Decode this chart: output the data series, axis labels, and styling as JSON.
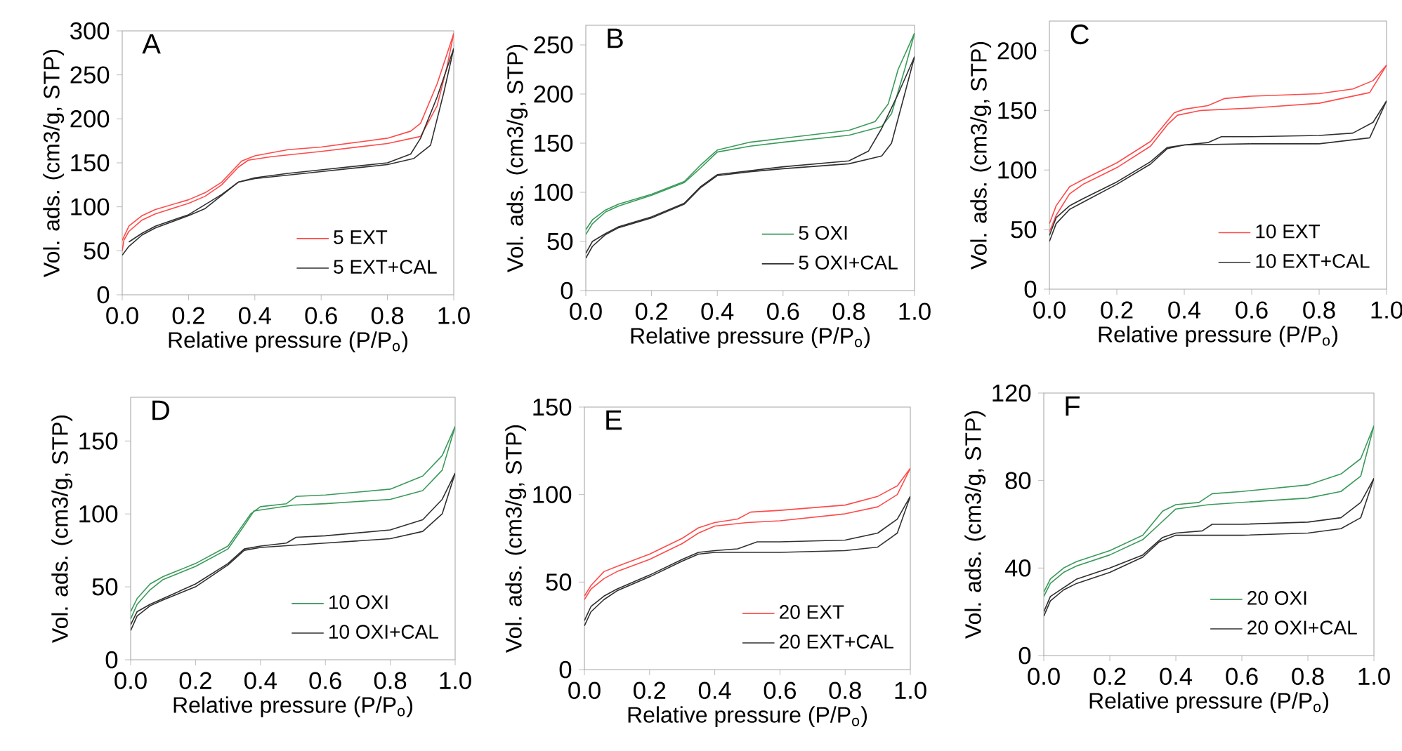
{
  "chart_data": [
    {
      "type": "line",
      "title": "A",
      "xlabel": "Relative pressure (P/P$_{o}$)",
      "ylabel": "Vol. ads. (cm3/g, STP)",
      "xlim": [
        0,
        1
      ],
      "xticks": [
        {
          "value": 0,
          "label": "0.0"
        },
        {
          "value": 0.2,
          "label": "0.2"
        },
        {
          "value": 0.4,
          "label": "0.4"
        },
        {
          "value": 0.6,
          "label": "0.6"
        },
        {
          "value": 0.8,
          "label": "0.8"
        },
        {
          "value": 1,
          "label": "1.0"
        }
      ],
      "ylim": [
        0,
        300
      ],
      "yticks": [
        0,
        50,
        100,
        150,
        200,
        250,
        300
      ],
      "legend": "bottom right",
      "grid": false,
      "series": [
        {
          "name": "5 EXT",
          "color": "#ff4a4a",
          "x": [
            0,
            0.005,
            0.02,
            0.06,
            0.1,
            0.2,
            0.25,
            0.3,
            0.35,
            0.38,
            0.45,
            0.6,
            0.8,
            0.9,
            0.95,
            0.98,
            1.0
          ],
          "values": [
            50,
            62,
            72,
            85,
            92,
            104,
            112,
            125,
            145,
            153,
            157,
            163,
            172,
            180,
            215,
            260,
            297
          ]
        },
        {
          "color": "#ff4a4a",
          "x": [
            0,
            0.02,
            0.06,
            0.1,
            0.2,
            0.25,
            0.3,
            0.36,
            0.4,
            0.5,
            0.6,
            0.8,
            0.87,
            0.9,
            0.95,
            1.0
          ],
          "values": [
            62,
            78,
            90,
            97,
            108,
            116,
            128,
            152,
            158,
            165,
            168,
            178,
            186,
            195,
            240,
            297
          ]
        },
        {
          "name": "5 EXT+CAL",
          "color": "#303030",
          "x": [
            0,
            0.02,
            0.06,
            0.1,
            0.2,
            0.25,
            0.3,
            0.35,
            0.4,
            0.6,
            0.8,
            0.88,
            0.93,
            0.97,
            1.0
          ],
          "values": [
            45,
            55,
            68,
            76,
            90,
            98,
            113,
            128,
            132,
            140,
            148,
            155,
            170,
            230,
            280
          ]
        },
        {
          "color": "#303030",
          "x": [
            0.02,
            0.06,
            0.1,
            0.2,
            0.3,
            0.35,
            0.4,
            0.5,
            0.6,
            0.8,
            0.87,
            0.9,
            0.95,
            1.0
          ],
          "values": [
            60,
            70,
            78,
            91,
            114,
            128,
            133,
            138,
            142,
            150,
            160,
            178,
            225,
            280
          ]
        }
      ]
    },
    {
      "type": "line",
      "title": "B",
      "xlabel": "Relative pressure (P/P$_{o}$)",
      "ylabel": "Vol. ads. (cm3/g, STP)",
      "xlim": [
        0,
        1
      ],
      "xticks": [
        {
          "value": 0,
          "label": "0.0"
        },
        {
          "value": 0.2,
          "label": "0.2"
        },
        {
          "value": 0.4,
          "label": "0.4"
        },
        {
          "value": 0.6,
          "label": "0.6"
        },
        {
          "value": 0.8,
          "label": "0.8"
        },
        {
          "value": 1,
          "label": "1.0"
        }
      ],
      "ylim": [
        0,
        270
      ],
      "yticks": [
        0,
        50,
        100,
        150,
        200,
        250
      ],
      "legend": "bottom right",
      "grid": false,
      "series": [
        {
          "name": "5 OXI",
          "color": "#3a9a5a",
          "x": [
            0,
            0.02,
            0.06,
            0.1,
            0.2,
            0.3,
            0.35,
            0.4,
            0.5,
            0.6,
            0.8,
            0.9,
            0.93,
            0.97,
            1.0
          ],
          "values": [
            57,
            68,
            80,
            86,
            97,
            110,
            125,
            141,
            147,
            151,
            158,
            167,
            180,
            225,
            262
          ]
        },
        {
          "color": "#3a9a5a",
          "x": [
            0,
            0.02,
            0.06,
            0.1,
            0.2,
            0.3,
            0.35,
            0.4,
            0.5,
            0.6,
            0.8,
            0.88,
            0.92,
            0.95,
            1.0
          ],
          "values": [
            62,
            72,
            82,
            88,
            98,
            111,
            128,
            143,
            151,
            155,
            163,
            172,
            190,
            225,
            262
          ]
        },
        {
          "name": "5 OXI+CAL",
          "color": "#303030",
          "x": [
            0,
            0.02,
            0.06,
            0.1,
            0.2,
            0.3,
            0.35,
            0.4,
            0.5,
            0.6,
            0.8,
            0.9,
            0.93,
            0.97,
            1.0
          ],
          "values": [
            33,
            45,
            57,
            64,
            74,
            88,
            105,
            117,
            121,
            124,
            129,
            137,
            150,
            200,
            238
          ]
        },
        {
          "color": "#303030",
          "x": [
            0,
            0.02,
            0.06,
            0.1,
            0.2,
            0.3,
            0.35,
            0.4,
            0.5,
            0.6,
            0.8,
            0.86,
            0.9,
            0.95,
            1.0
          ],
          "values": [
            38,
            50,
            58,
            65,
            75,
            89,
            106,
            118,
            122,
            126,
            132,
            142,
            165,
            200,
            238
          ]
        }
      ]
    },
    {
      "type": "line",
      "title": "C",
      "xlabel": "Relative pressure (P/P$_{o}$)",
      "ylabel": "Vol. ads. (cm3/g, STP)",
      "xlim": [
        0,
        1
      ],
      "xticks": [
        {
          "value": 0,
          "label": "0.0"
        },
        {
          "value": 0.2,
          "label": "0.2"
        },
        {
          "value": 0.4,
          "label": "0.4"
        },
        {
          "value": 0.6,
          "label": "0.6"
        },
        {
          "value": 0.8,
          "label": "0.8"
        },
        {
          "value": 1,
          "label": "1.0"
        }
      ],
      "ylim": [
        0,
        225
      ],
      "yticks": [
        0,
        50,
        100,
        150,
        200
      ],
      "legend": "bottom right",
      "grid": false,
      "series": [
        {
          "name": "10 EXT",
          "color": "#ff4a4a",
          "x": [
            0,
            0.02,
            0.06,
            0.1,
            0.2,
            0.3,
            0.35,
            0.38,
            0.45,
            0.6,
            0.8,
            0.95,
            1.0
          ],
          "values": [
            48,
            62,
            80,
            88,
            102,
            120,
            138,
            146,
            150,
            152,
            156,
            165,
            188
          ]
        },
        {
          "color": "#ff4a4a",
          "x": [
            0,
            0.02,
            0.06,
            0.1,
            0.2,
            0.3,
            0.37,
            0.4,
            0.47,
            0.52,
            0.6,
            0.8,
            0.9,
            0.96,
            1.0
          ],
          "values": [
            55,
            70,
            86,
            92,
            106,
            124,
            148,
            151,
            154,
            160,
            162,
            164,
            168,
            175,
            188
          ]
        },
        {
          "name": "10 EXT+CAL",
          "color": "#303030",
          "x": [
            0,
            0.02,
            0.06,
            0.1,
            0.2,
            0.3,
            0.35,
            0.4,
            0.6,
            0.8,
            0.95,
            1.0
          ],
          "values": [
            40,
            55,
            67,
            73,
            88,
            105,
            118,
            121,
            122,
            122,
            127,
            158
          ]
        },
        {
          "color": "#303030",
          "x": [
            0,
            0.02,
            0.06,
            0.1,
            0.2,
            0.3,
            0.35,
            0.4,
            0.47,
            0.51,
            0.6,
            0.8,
            0.9,
            0.96,
            1.0
          ],
          "values": [
            45,
            60,
            70,
            76,
            90,
            107,
            119,
            121,
            123,
            128,
            128,
            129,
            131,
            140,
            158
          ]
        }
      ]
    },
    {
      "type": "line",
      "title": "D",
      "xlabel": "Relative pressure (P/P$_{o}$)",
      "ylabel": "Vol. ads. (cm3/g, STP)",
      "xlim": [
        0,
        1
      ],
      "xticks": [
        {
          "value": 0,
          "label": "0.0"
        },
        {
          "value": 0.2,
          "label": "0.2"
        },
        {
          "value": 0.4,
          "label": "0.4"
        },
        {
          "value": 0.6,
          "label": "0.6"
        },
        {
          "value": 0.8,
          "label": "0.8"
        },
        {
          "value": 1,
          "label": "1.0"
        }
      ],
      "ylim": [
        0,
        180
      ],
      "yticks": [
        0,
        50,
        100,
        150
      ],
      "legend": "bottom right",
      "grid": false,
      "series": [
        {
          "name": "10 OXI",
          "color": "#3a9a5a",
          "x": [
            0,
            0.02,
            0.06,
            0.1,
            0.2,
            0.3,
            0.35,
            0.38,
            0.5,
            0.6,
            0.8,
            0.9,
            0.96,
            1.0
          ],
          "values": [
            28,
            38,
            48,
            55,
            64,
            76,
            92,
            102,
            106,
            107,
            110,
            116,
            130,
            160
          ]
        },
        {
          "color": "#3a9a5a",
          "x": [
            0,
            0.02,
            0.06,
            0.1,
            0.2,
            0.3,
            0.37,
            0.4,
            0.48,
            0.51,
            0.6,
            0.8,
            0.9,
            0.96,
            1.0
          ],
          "values": [
            33,
            42,
            52,
            57,
            66,
            78,
            100,
            105,
            107,
            112,
            113,
            117,
            126,
            140,
            160
          ]
        },
        {
          "name": "10 OXI+CAL",
          "color": "#303030",
          "x": [
            0,
            0.02,
            0.06,
            0.1,
            0.2,
            0.3,
            0.35,
            0.4,
            0.6,
            0.8,
            0.9,
            0.96,
            1.0
          ],
          "values": [
            20,
            30,
            37,
            41,
            50,
            65,
            75,
            77,
            80,
            83,
            88,
            100,
            128
          ]
        },
        {
          "color": "#303030",
          "x": [
            0,
            0.02,
            0.06,
            0.1,
            0.2,
            0.3,
            0.35,
            0.4,
            0.48,
            0.51,
            0.6,
            0.8,
            0.9,
            0.96,
            1.0
          ],
          "values": [
            24,
            33,
            38,
            42,
            52,
            66,
            76,
            78,
            80,
            84,
            85,
            89,
            96,
            110,
            128
          ]
        }
      ]
    },
    {
      "type": "line",
      "title": "E",
      "xlabel": "Relative pressure (P/P$_{o}$)",
      "ylabel": "Vol. ads. (cm3/g, STP)",
      "xlim": [
        0,
        1
      ],
      "xticks": [
        {
          "value": 0,
          "label": "0.0"
        },
        {
          "value": 0.2,
          "label": "0.2"
        },
        {
          "value": 0.4,
          "label": "0.4"
        },
        {
          "value": 0.6,
          "label": "0.6"
        },
        {
          "value": 0.8,
          "label": "0.8"
        },
        {
          "value": 1,
          "label": "1.0"
        }
      ],
      "ylim": [
        0,
        150
      ],
      "yticks": [
        0,
        50,
        100,
        150
      ],
      "legend": "bottom right",
      "grid": false,
      "series": [
        {
          "name": "20 EXT",
          "color": "#ff4a4a",
          "x": [
            0,
            0.02,
            0.06,
            0.1,
            0.2,
            0.3,
            0.35,
            0.4,
            0.5,
            0.6,
            0.8,
            0.9,
            0.96,
            1.0
          ],
          "values": [
            40,
            46,
            52,
            56,
            63,
            72,
            78,
            82,
            84,
            85,
            89,
            93,
            100,
            115
          ]
        },
        {
          "color": "#ff4a4a",
          "x": [
            0,
            0.02,
            0.06,
            0.1,
            0.2,
            0.3,
            0.35,
            0.4,
            0.47,
            0.51,
            0.6,
            0.8,
            0.9,
            0.96,
            1.0
          ],
          "values": [
            42,
            48,
            56,
            59,
            66,
            75,
            81,
            84,
            86,
            90,
            91,
            94,
            99,
            105,
            115
          ]
        },
        {
          "name": "20 EXT+CAL",
          "color": "#303030",
          "x": [
            0,
            0.02,
            0.06,
            0.1,
            0.2,
            0.3,
            0.35,
            0.4,
            0.6,
            0.8,
            0.9,
            0.96,
            1.0
          ],
          "values": [
            25,
            33,
            40,
            45,
            53,
            62,
            66,
            67,
            67,
            68,
            70,
            78,
            99
          ]
        },
        {
          "color": "#303030",
          "x": [
            0,
            0.02,
            0.06,
            0.1,
            0.2,
            0.3,
            0.35,
            0.4,
            0.47,
            0.53,
            0.6,
            0.8,
            0.9,
            0.96,
            1.0
          ],
          "values": [
            28,
            36,
            42,
            46,
            54,
            63,
            67,
            68,
            69,
            73,
            73,
            74,
            78,
            86,
            99
          ]
        }
      ]
    },
    {
      "type": "line",
      "title": "F",
      "xlabel": "Relative pressure (P/P$_{o}$)",
      "ylabel": "Vol. ads. (cm3/g, STP)",
      "xlim": [
        0,
        1
      ],
      "xticks": [
        {
          "value": 0,
          "label": "0.0"
        },
        {
          "value": 0.2,
          "label": "0.2"
        },
        {
          "value": 0.4,
          "label": "0.4"
        },
        {
          "value": 0.6,
          "label": "0.6"
        },
        {
          "value": 0.8,
          "label": "0.8"
        },
        {
          "value": 1,
          "label": "1.0"
        }
      ],
      "ylim": [
        0,
        120
      ],
      "yticks": [
        0,
        40,
        80,
        120
      ],
      "legend": "bottom right",
      "grid": false,
      "series": [
        {
          "name": "20 OXI",
          "color": "#3a9a5a",
          "x": [
            0,
            0.02,
            0.06,
            0.1,
            0.2,
            0.3,
            0.35,
            0.4,
            0.5,
            0.6,
            0.8,
            0.9,
            0.96,
            1.0
          ],
          "values": [
            27,
            33,
            38,
            41,
            46,
            53,
            60,
            67,
            69,
            70,
            72,
            75,
            82,
            105
          ]
        },
        {
          "color": "#3a9a5a",
          "x": [
            0,
            0.02,
            0.06,
            0.1,
            0.2,
            0.3,
            0.36,
            0.4,
            0.47,
            0.51,
            0.6,
            0.8,
            0.9,
            0.96,
            1.0
          ],
          "values": [
            29,
            35,
            40,
            43,
            48,
            55,
            66,
            69,
            70,
            74,
            75,
            78,
            83,
            90,
            105
          ]
        },
        {
          "name": "20 OXI+CAL",
          "color": "#303030",
          "x": [
            0,
            0.02,
            0.06,
            0.1,
            0.2,
            0.3,
            0.35,
            0.4,
            0.6,
            0.8,
            0.9,
            0.96,
            1.0
          ],
          "values": [
            18,
            25,
            30,
            33,
            38,
            45,
            52,
            55,
            55,
            56,
            58,
            63,
            81
          ]
        },
        {
          "color": "#303030",
          "x": [
            0,
            0.02,
            0.06,
            0.1,
            0.2,
            0.3,
            0.36,
            0.4,
            0.48,
            0.51,
            0.6,
            0.8,
            0.9,
            0.96,
            1.0
          ],
          "values": [
            20,
            27,
            31,
            35,
            40,
            46,
            54,
            56,
            57,
            60,
            60,
            61,
            63,
            70,
            81
          ]
        }
      ]
    }
  ]
}
